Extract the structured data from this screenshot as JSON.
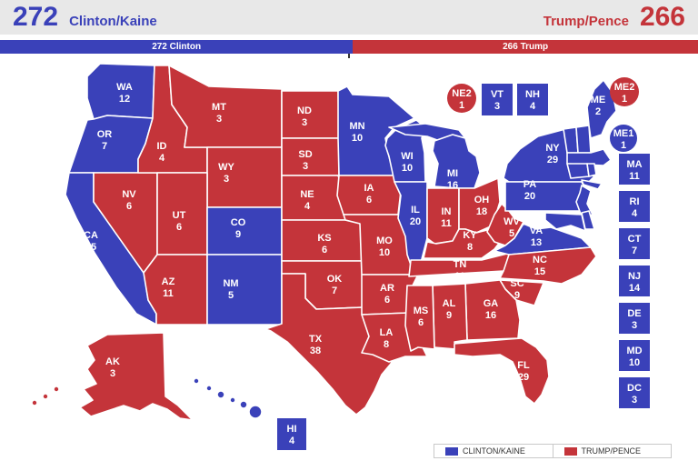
{
  "colors": {
    "dem": "#3a41b9",
    "rep": "#c4343a"
  },
  "header": {
    "left": {
      "votes": "272",
      "candidate": "Clinton/Kaine"
    },
    "right": {
      "votes": "266",
      "candidate": "Trump/Pence"
    },
    "bar": {
      "left_label": "272 Clinton",
      "right_label": "266 Trump",
      "left_pct": 50.56
    }
  },
  "legend": [
    {
      "label": "CLINTON/KAINE",
      "party": "dem"
    },
    {
      "label": "TRUMP/PENCE",
      "party": "rep"
    }
  ],
  "map": {
    "states": [
      {
        "abbr": "WA",
        "ev": "12",
        "party": "dem"
      },
      {
        "abbr": "OR",
        "ev": "7",
        "party": "dem"
      },
      {
        "abbr": "CA",
        "ev": "55",
        "party": "dem"
      },
      {
        "abbr": "NV",
        "ev": "6",
        "party": "rep"
      },
      {
        "abbr": "ID",
        "ev": "4",
        "party": "rep"
      },
      {
        "abbr": "MT",
        "ev": "3",
        "party": "rep"
      },
      {
        "abbr": "WY",
        "ev": "3",
        "party": "rep"
      },
      {
        "abbr": "UT",
        "ev": "6",
        "party": "rep"
      },
      {
        "abbr": "CO",
        "ev": "9",
        "party": "dem"
      },
      {
        "abbr": "AZ",
        "ev": "11",
        "party": "rep"
      },
      {
        "abbr": "NM",
        "ev": "5",
        "party": "dem"
      },
      {
        "abbr": "ND",
        "ev": "3",
        "party": "rep"
      },
      {
        "abbr": "SD",
        "ev": "3",
        "party": "rep"
      },
      {
        "abbr": "NE",
        "ev": "4",
        "party": "rep"
      },
      {
        "abbr": "KS",
        "ev": "6",
        "party": "rep"
      },
      {
        "abbr": "OK",
        "ev": "7",
        "party": "rep"
      },
      {
        "abbr": "TX",
        "ev": "38",
        "party": "rep"
      },
      {
        "abbr": "MN",
        "ev": "10",
        "party": "dem"
      },
      {
        "abbr": "IA",
        "ev": "6",
        "party": "rep"
      },
      {
        "abbr": "MO",
        "ev": "10",
        "party": "rep"
      },
      {
        "abbr": "AR",
        "ev": "6",
        "party": "rep"
      },
      {
        "abbr": "LA",
        "ev": "8",
        "party": "rep"
      },
      {
        "abbr": "WI",
        "ev": "10",
        "party": "dem"
      },
      {
        "abbr": "IL",
        "ev": "20",
        "party": "dem"
      },
      {
        "abbr": "MS",
        "ev": "6",
        "party": "rep"
      },
      {
        "abbr": "IN",
        "ev": "11",
        "party": "rep"
      },
      {
        "abbr": "MI",
        "ev": "16",
        "party": "dem"
      },
      {
        "abbr": "OH",
        "ev": "18",
        "party": "rep"
      },
      {
        "abbr": "KY",
        "ev": "8",
        "party": "rep"
      },
      {
        "abbr": "TN",
        "ev": "11",
        "party": "rep"
      },
      {
        "abbr": "WV",
        "ev": "5",
        "party": "rep"
      },
      {
        "abbr": "VA",
        "ev": "13",
        "party": "dem"
      },
      {
        "abbr": "NC",
        "ev": "15",
        "party": "rep"
      },
      {
        "abbr": "SC",
        "ev": "9",
        "party": "rep"
      },
      {
        "abbr": "GA",
        "ev": "16",
        "party": "rep"
      },
      {
        "abbr": "AL",
        "ev": "9",
        "party": "rep"
      },
      {
        "abbr": "FL",
        "ev": "29",
        "party": "rep"
      },
      {
        "abbr": "NY",
        "ev": "29",
        "party": "dem"
      },
      {
        "abbr": "PA",
        "ev": "20",
        "party": "dem"
      },
      {
        "abbr": "ME",
        "ev": "2",
        "party": "dem"
      },
      {
        "abbr": "AK",
        "ev": "3",
        "party": "rep"
      },
      {
        "abbr": "HI",
        "ev": "4",
        "party": "dem"
      },
      {
        "abbr": "VT",
        "ev": "3",
        "party": "dem"
      },
      {
        "abbr": "NH",
        "ev": "4",
        "party": "dem"
      },
      {
        "abbr": "MA",
        "ev": "11",
        "party": "dem"
      },
      {
        "abbr": "RI",
        "ev": "4",
        "party": "dem"
      },
      {
        "abbr": "CT",
        "ev": "7",
        "party": "dem"
      },
      {
        "abbr": "NJ",
        "ev": "14",
        "party": "dem"
      },
      {
        "abbr": "DE",
        "ev": "3",
        "party": "dem"
      },
      {
        "abbr": "MD",
        "ev": "10",
        "party": "dem"
      },
      {
        "abbr": "DC",
        "ev": "3",
        "party": "dem"
      },
      {
        "abbr": "NE2",
        "ev": "1",
        "party": "rep"
      },
      {
        "abbr": "ME2",
        "ev": "1",
        "party": "rep"
      },
      {
        "abbr": "ME1",
        "ev": "1",
        "party": "dem"
      }
    ]
  }
}
